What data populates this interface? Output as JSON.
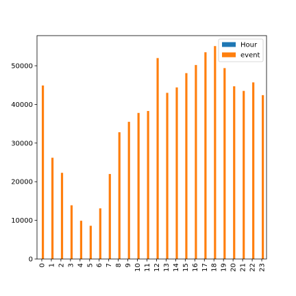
{
  "chart_data": {
    "type": "bar",
    "categories": [
      "0",
      "1",
      "2",
      "3",
      "4",
      "5",
      "6",
      "7",
      "8",
      "9",
      "10",
      "11",
      "12",
      "13",
      "14",
      "15",
      "16",
      "17",
      "18",
      "19",
      "20",
      "21",
      "22",
      "23"
    ],
    "series": [
      {
        "name": "Hour",
        "color": "#1f77b4",
        "values": [
          0,
          1,
          2,
          3,
          4,
          5,
          6,
          7,
          8,
          9,
          10,
          11,
          12,
          13,
          14,
          15,
          16,
          17,
          18,
          19,
          20,
          21,
          22,
          23
        ]
      },
      {
        "name": "event",
        "color": "#ff7f0e",
        "values": [
          44900,
          26200,
          22300,
          13900,
          9900,
          8600,
          13100,
          22000,
          32800,
          35500,
          37800,
          38300,
          52000,
          43000,
          44400,
          48100,
          50200,
          53500,
          55100,
          49400,
          44700,
          43500,
          45700,
          42400
        ]
      }
    ],
    "title": "",
    "xlabel": "",
    "ylabel": "",
    "ylim": [
      0,
      57800
    ],
    "yticks": [
      0,
      10000,
      20000,
      30000,
      40000,
      50000
    ],
    "grid": false,
    "legend_position": "top-right"
  }
}
